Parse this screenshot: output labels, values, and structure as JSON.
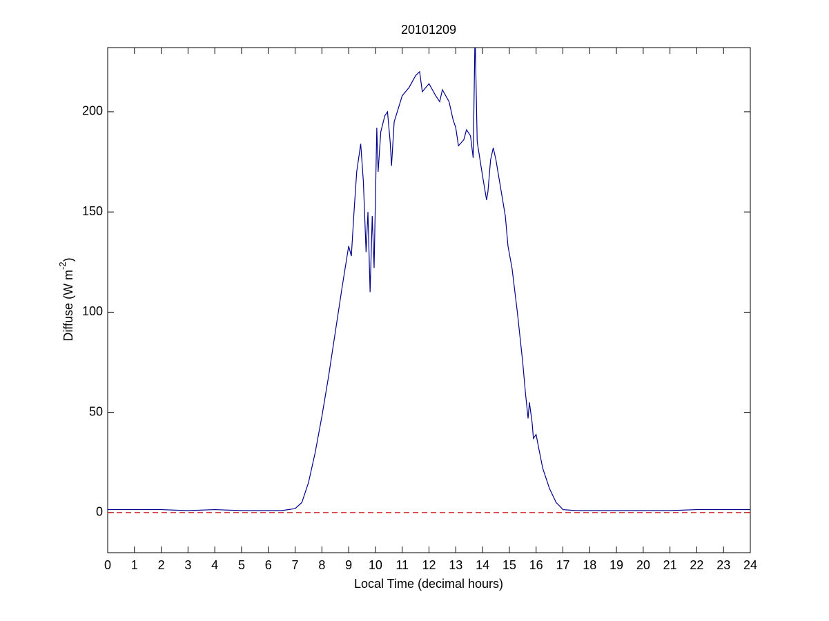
{
  "chart_data": {
    "type": "line",
    "title": "20101209",
    "xlabel": "Local Time (decimal hours)",
    "ylabel": [
      "Diffuse (W m",
      "-2",
      ")"
    ],
    "xlim": [
      0,
      24
    ],
    "ylim": [
      -20,
      232
    ],
    "xticks": [
      0,
      1,
      2,
      3,
      4,
      5,
      6,
      7,
      8,
      9,
      10,
      11,
      12,
      13,
      14,
      15,
      16,
      17,
      18,
      19,
      20,
      21,
      22,
      23,
      24
    ],
    "yticks": [
      0,
      50,
      100,
      150,
      200
    ],
    "reference_line": {
      "value": 0,
      "color": "#cc0000"
    },
    "series": [
      {
        "color": "#00008b",
        "x": [
          0,
          1,
          2,
          3,
          4,
          5,
          6,
          6.5,
          7,
          7.25,
          7.5,
          7.75,
          8,
          8.25,
          8.5,
          8.75,
          9,
          9.1,
          9.2,
          9.3,
          9.45,
          9.55,
          9.65,
          9.72,
          9.8,
          9.88,
          9.95,
          10.05,
          10.1,
          10.2,
          10.35,
          10.45,
          10.55,
          10.6,
          10.7,
          11,
          11.25,
          11.5,
          11.65,
          11.75,
          12,
          12.25,
          12.4,
          12.5,
          12.75,
          12.9,
          13,
          13.1,
          13.3,
          13.4,
          13.55,
          13.65,
          13.72,
          13.8,
          14,
          14.15,
          14.2,
          14.3,
          14.4,
          14.5,
          14.7,
          14.85,
          14.95,
          15.1,
          15.3,
          15.5,
          15.6,
          15.7,
          15.75,
          15.85,
          15.9,
          16,
          16.1,
          16.25,
          16.5,
          16.75,
          16.9,
          17,
          17.5,
          18,
          19,
          20,
          21,
          22,
          23,
          24
        ],
        "values": [
          1.5,
          1.5,
          1.5,
          1,
          1.5,
          1,
          1,
          1,
          2,
          5,
          15,
          30,
          48,
          68,
          90,
          112,
          133,
          128,
          150,
          170,
          184,
          165,
          130,
          150,
          110,
          148,
          122,
          192,
          170,
          190,
          198,
          200,
          185,
          173,
          195,
          208,
          212,
          218,
          220,
          210,
          214,
          208,
          205,
          211,
          205,
          196,
          192,
          183,
          186,
          191,
          188,
          177,
          240,
          185,
          168,
          156,
          160,
          176,
          182,
          176,
          160,
          148,
          133,
          122,
          100,
          75,
          60,
          47,
          55,
          45,
          37,
          39,
          32,
          22,
          12,
          5,
          3,
          1.5,
          1,
          1,
          1,
          1,
          1,
          1.5,
          1.5,
          1.5
        ]
      }
    ]
  }
}
